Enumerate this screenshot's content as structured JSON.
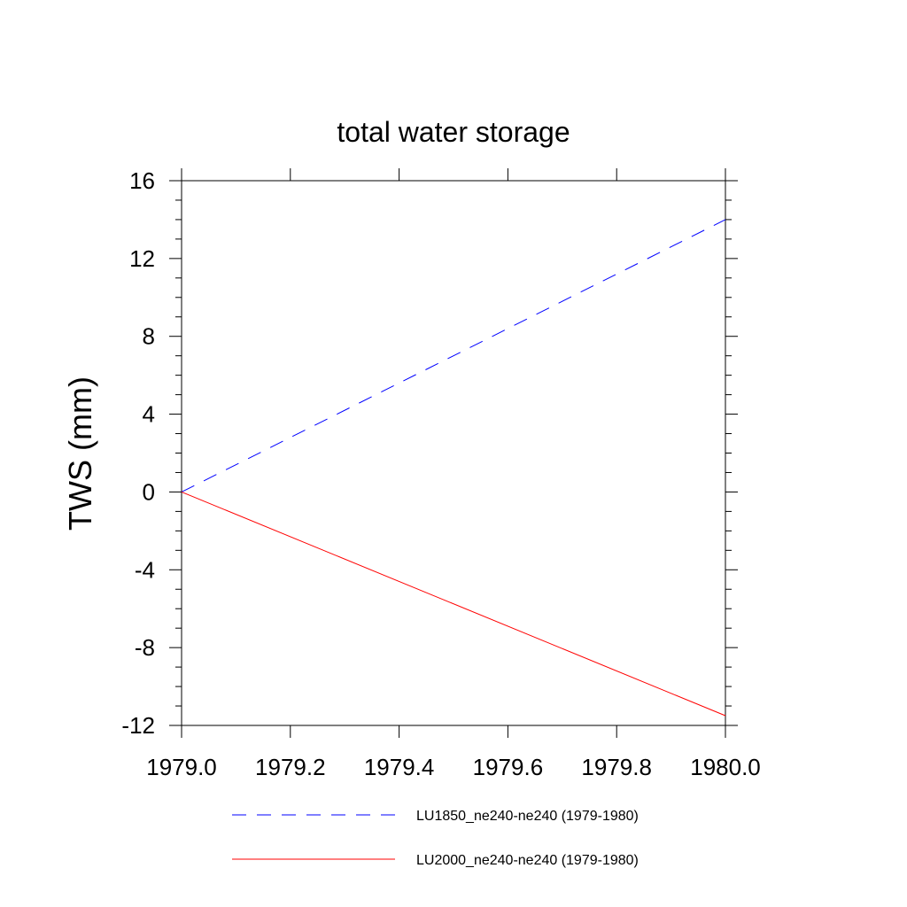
{
  "chart_data": {
    "type": "line",
    "title": "total water storage",
    "xlabel": "",
    "ylabel": "TWS  (mm)",
    "xlim": [
      1979.0,
      1980.0
    ],
    "ylim": [
      -12,
      16
    ],
    "x_ticks": [
      1979.0,
      1979.2,
      1979.4,
      1979.6,
      1979.8,
      1980.0
    ],
    "x_tick_labels": [
      "1979.0",
      "1979.2",
      "1979.4",
      "1979.6",
      "1979.8",
      "1980.0"
    ],
    "y_ticks": [
      -12,
      -8,
      -4,
      0,
      4,
      8,
      12,
      16
    ],
    "y_tick_labels": [
      "-12",
      "-8",
      "-4",
      "0",
      "4",
      "8",
      "12",
      "16"
    ],
    "grid": false,
    "legend_placement": "bottom",
    "series": [
      {
        "name": "LU1850_ne240-ne240 (1979-1980)",
        "color": "#0000ff",
        "dash": "dashed",
        "x": [
          1979.0,
          1980.0
        ],
        "y": [
          0,
          14
        ]
      },
      {
        "name": "LU2000_ne240-ne240 (1979-1980)",
        "color": "#ff0000",
        "dash": "solid",
        "x": [
          1979.0,
          1980.0
        ],
        "y": [
          0,
          -11.5
        ]
      }
    ]
  }
}
